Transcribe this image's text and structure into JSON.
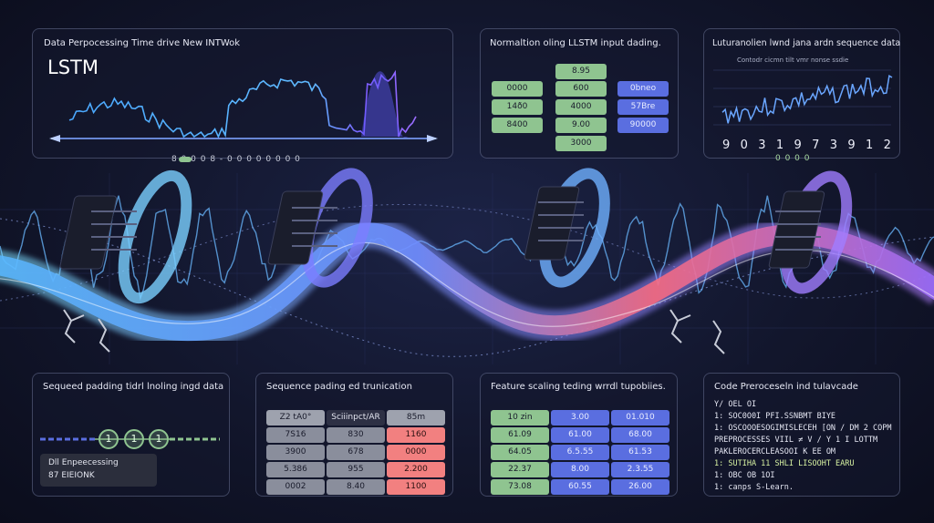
{
  "panel1": {
    "subtitle": "Data Perpocessing Time drive New INTWok",
    "title": "LSTM",
    "dots": "8 0 0 0 8 - 0 0 0 0 0 0 0 0"
  },
  "panel2": {
    "title": "Normaltion oling LLSTM  input dading.",
    "col_left": [
      "0000",
      "14ð0",
      "8400"
    ],
    "col_mid": [
      "8.95",
      "600",
      "4000",
      "9.00",
      "3000"
    ],
    "col_right": [
      "0bneo",
      "57Bre",
      "90000"
    ]
  },
  "panel3": {
    "title": "Luturanolien lwnd jana ardn sequence data",
    "subtitle": "Contodr cicmn tilt vmr nonse ssdie",
    "digits": [
      "9",
      "0",
      "3",
      "1",
      "9",
      "7",
      "3",
      "9",
      "1",
      "2"
    ],
    "dots": "0 0 0 0"
  },
  "panel4": {
    "title": "Sequeed padding tidrl lnoling ingd data",
    "steps": [
      "1",
      "1",
      "1"
    ],
    "box_line1": "Dll Enpeecessing",
    "box_line2": "87 EIEIONK"
  },
  "panel5": {
    "title": "Sequence pading ed trunication",
    "headers": [
      "Z2 tA0°",
      "Sciiinpct/AR",
      "85m"
    ],
    "rows": [
      [
        "7S16",
        "830",
        "1160"
      ],
      [
        "3900",
        "678",
        "0000"
      ],
      [
        "5.386",
        "955",
        "2.200"
      ],
      [
        "0002",
        "8.40",
        "1100"
      ]
    ]
  },
  "panel6": {
    "title": "Feature scaling teding wrrdl tupobiies.",
    "rows": [
      [
        "10 zin",
        "3.00",
        "01.010"
      ],
      [
        "61.09",
        "61.00",
        "68.00"
      ],
      [
        "64.05",
        "6.5.55",
        "61.53"
      ],
      [
        "22.37",
        "8.00",
        "2.3.55"
      ],
      [
        "73.08",
        "60.55",
        "26.00"
      ]
    ]
  },
  "panel7": {
    "title": "Code Preroceseln ind tulavcade",
    "lines": [
      "Y/ OEL OI",
      "1:  SOC0O0I PFI.SSNBMT BIYE",
      "1:  OSCOOOESOGIMISLECEH [ON / DM 2 COPM",
      "PREPROCESSES VIIL ≠ V / Y 1 I LOTTM",
      "PAKLEROCERCLEASOOI K EE OM",
      "1:  SUTIHA 11  SHLI LISOOHT EARU",
      "1:  OBC OB 1OI",
      "1:  canps S-Learn."
    ],
    "highlight_index": 5
  },
  "colors": {
    "background": "#12162c",
    "accent_blue": "#5a6ee0",
    "accent_green": "#8fc490",
    "accent_red": "#f28080",
    "wave_cyan": "#5fc7ff",
    "wave_purple": "#9a6dff",
    "wave_pink": "#ff6b7d"
  }
}
